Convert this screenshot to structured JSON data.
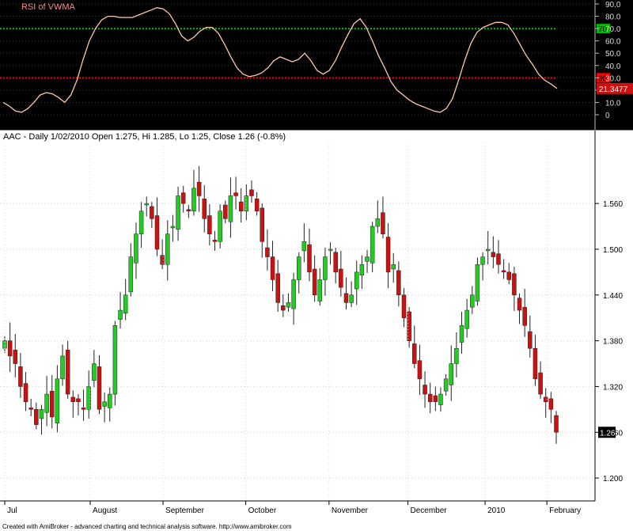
{
  "footer_text": "Created with AmiBroker - advanced charting and technical analysis software. http://www.amibroker.com",
  "chart_data": [
    {
      "type": "line",
      "title": "RSI of VWMA",
      "ylim": [
        0,
        90
      ],
      "y_ticks": [
        "90.0",
        "80.0",
        "70.0",
        "60.0",
        "50.0",
        "40.0",
        "30.0",
        "20.0",
        "10.0",
        "0"
      ],
      "levels": [
        {
          "value": 70,
          "label": "70",
          "color": "#00bb00"
        },
        {
          "value": 30,
          "label": "30",
          "color": "#ff0000"
        }
      ],
      "last_value": 21.3477,
      "last_value_label": "21.3477",
      "line_color": "#ffc8a8",
      "background": "#000000",
      "values": [
        10,
        7,
        3,
        2,
        5,
        10,
        16,
        18,
        17,
        14,
        10,
        16,
        28,
        45,
        60,
        70,
        77,
        80,
        80,
        79,
        79,
        79,
        81,
        83,
        85,
        87,
        86,
        82,
        74,
        64,
        60,
        63,
        68,
        71,
        71,
        66,
        57,
        47,
        38,
        33,
        31,
        32,
        34,
        38,
        44,
        47,
        45,
        43,
        45,
        50,
        44,
        36,
        33,
        36,
        44,
        55,
        65,
        74,
        78,
        71,
        60,
        48,
        38,
        27,
        20,
        16,
        12,
        9,
        7,
        5,
        3,
        2,
        5,
        13,
        28,
        44,
        58,
        67,
        71,
        73,
        75,
        75,
        73,
        66,
        57,
        48,
        41,
        33,
        28,
        25,
        21.3477
      ]
    },
    {
      "type": "candlestick",
      "title": "AAC - Daily 1/02/2010 Open 1.275, Hi 1.285, Lo 1.25, Close 1.26 (-0.8%)",
      "ylim": [
        1.17,
        1.64
      ],
      "y_ticks": [
        "1.560",
        "1.500",
        "1.440",
        "1.380",
        "1.320",
        "1.260",
        "1.200"
      ],
      "x_labels": [
        "Jul",
        "August",
        "September",
        "October",
        "November",
        "December",
        "2010",
        "February"
      ],
      "last_close_label": "1.26",
      "up_color": "#22cc22",
      "down_color": "#cc1111",
      "closes": [
        1.38,
        1.36,
        1.35,
        1.32,
        1.3,
        1.29,
        1.27,
        1.29,
        1.31,
        1.28,
        1.33,
        1.36,
        1.31,
        1.3,
        1.3,
        1.29,
        1.32,
        1.35,
        1.29,
        1.3,
        1.31,
        1.4,
        1.42,
        1.44,
        1.49,
        1.52,
        1.55,
        1.56,
        1.54,
        1.5,
        1.48,
        1.52,
        1.53,
        1.57,
        1.56,
        1.55,
        1.58,
        1.57,
        1.54,
        1.52,
        1.51,
        1.55,
        1.54,
        1.57,
        1.57,
        1.55,
        1.57,
        1.57,
        1.55,
        1.51,
        1.49,
        1.46,
        1.43,
        1.42,
        1.43,
        1.46,
        1.49,
        1.51,
        1.47,
        1.44,
        1.46,
        1.49,
        1.5,
        1.47,
        1.45,
        1.43,
        1.44,
        1.47,
        1.48,
        1.49,
        1.53,
        1.54,
        1.52,
        1.47,
        1.48,
        1.44,
        1.41,
        1.38,
        1.35,
        1.33,
        1.31,
        1.3,
        1.3,
        1.31,
        1.33,
        1.35,
        1.37,
        1.4,
        1.42,
        1.44,
        1.48,
        1.49,
        1.5,
        1.49,
        1.48,
        1.47,
        1.46,
        1.44,
        1.42,
        1.4,
        1.37,
        1.33,
        1.31,
        1.3,
        1.29,
        1.26
      ]
    }
  ]
}
